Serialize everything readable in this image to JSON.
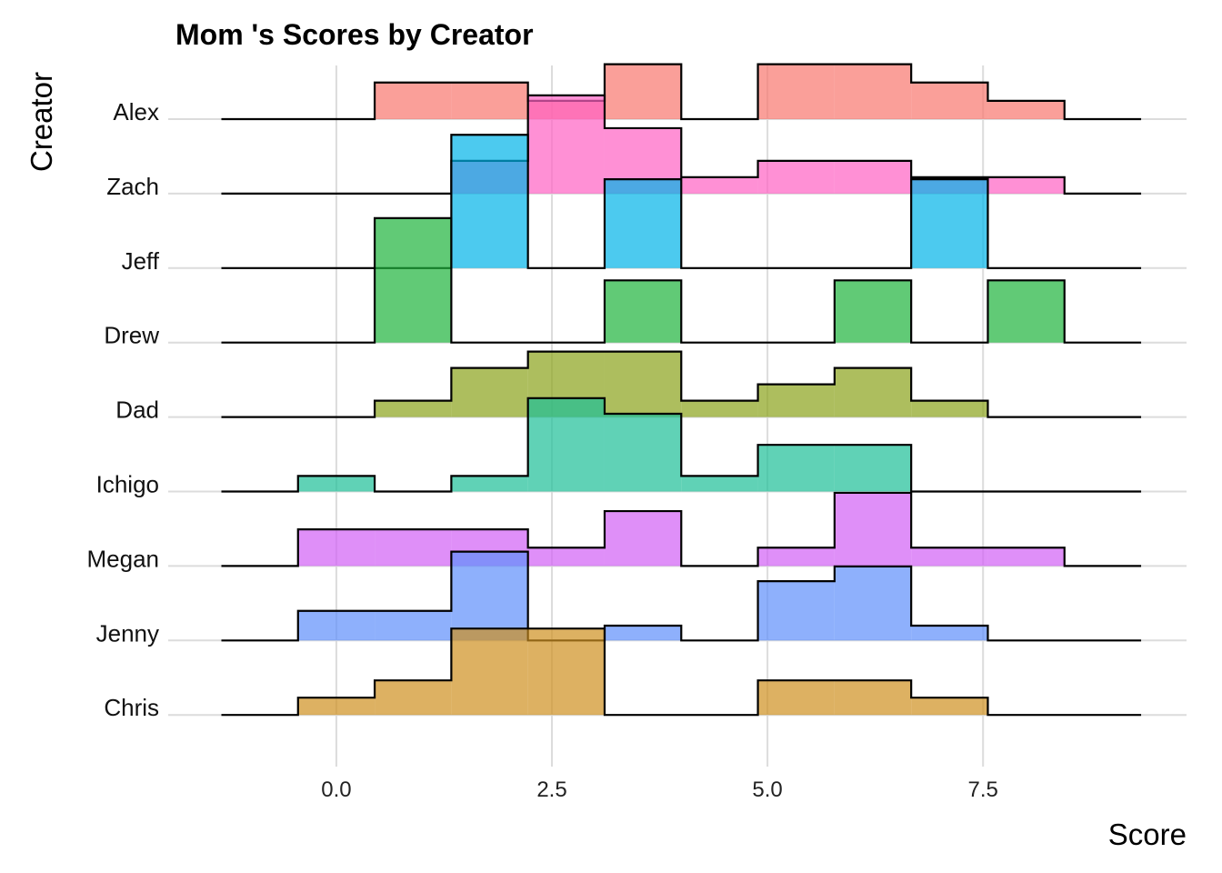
{
  "chart_data": {
    "type": "ridgeline-histogram",
    "title": "Mom 's Scores by Creator",
    "x_label": "Score",
    "y_label": "Creator",
    "bins": [
      -1.3333,
      -0.4444,
      0.4444,
      1.3333,
      2.2222,
      3.1111,
      4.0,
      4.8889,
      5.7778,
      6.6667,
      7.5556,
      8.4444,
      9.3333
    ],
    "xlim": [
      -1.95,
      9.86
    ],
    "xticks": [
      {
        "value": 0,
        "label": "0.0"
      },
      2.5,
      {
        "value": 5,
        "label": "5.0"
      },
      7.5
    ],
    "grid": true,
    "series": [
      {
        "name": "Alex",
        "color": "#f8766d",
        "values": [
          0,
          0,
          0.1324,
          0.1324,
          0.0662,
          0.1985,
          0,
          0.1985,
          0.1985,
          0.1324,
          0.0662,
          0
        ]
      },
      {
        "name": "Zach",
        "color": "#ff61c3",
        "values": [
          0,
          0,
          0,
          0.1184,
          0.3553,
          0.2368,
          0.0592,
          0.1184,
          0.1184,
          0.0592,
          0.0592,
          0
        ]
      },
      {
        "name": "Jeff",
        "color": "#00b4e8",
        "values": [
          0,
          0,
          0,
          0.4821,
          0,
          0.3214,
          0,
          0,
          0,
          0.3214,
          0,
          0
        ]
      },
      {
        "name": "Drew",
        "color": "#1eb33c",
        "values": [
          0,
          0,
          0.45,
          0,
          0,
          0.225,
          0,
          0,
          0.225,
          0,
          0.225,
          0
        ]
      },
      {
        "name": "Dad",
        "color": "#8aa31a",
        "values": [
          0,
          0,
          0.0592,
          0.1776,
          0.2368,
          0.2368,
          0.0592,
          0.1184,
          0.1776,
          0.0592,
          0,
          0
        ]
      },
      {
        "name": "Ichigo",
        "color": "#1dbf97",
        "values": [
          0,
          0.0563,
          0,
          0.0563,
          0.3375,
          0.2813,
          0.0563,
          0.1688,
          0.1688,
          0,
          0,
          0
        ]
      },
      {
        "name": "Megan",
        "color": "#d15ff5",
        "values": [
          0,
          0.1324,
          0.1324,
          0.1324,
          0.0662,
          0.1985,
          0,
          0.0662,
          0.2647,
          0.0662,
          0.0662,
          0
        ]
      },
      {
        "name": "Jenny",
        "color": "#5e8ffb",
        "values": [
          0,
          0.1071,
          0.1071,
          0.3214,
          0,
          0.0536,
          0,
          0.2143,
          0.2679,
          0.0536,
          0,
          0
        ]
      },
      {
        "name": "Chris",
        "color": "#ce9020",
        "values": [
          0,
          0.0625,
          0.125,
          0.3125,
          0.3125,
          0,
          0,
          0.125,
          0.125,
          0.0625,
          0,
          0
        ]
      }
    ]
  }
}
